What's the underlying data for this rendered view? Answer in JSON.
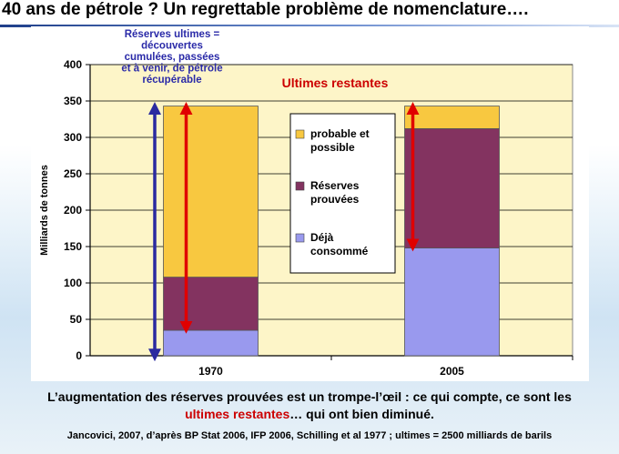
{
  "slide_title": "40 ans de pétrole ? Un regrettable problème de nomenclature….",
  "caption": {
    "line1": "L’augmentation des réserves prouvées est un trompe-l’œil : ce qui compte, ce sont les",
    "line2_red": "ultimes restantes",
    "line2_rest": "… qui ont bien diminué."
  },
  "source": "Jancovici, 2007, d’après BP Stat 2006, IFP 2006, Schilling et al 1977 ; ultimes = 2500 milliards de barils",
  "colors": {
    "plot_bg": "#fdf5c8",
    "dejà_consommé": "#9999ee",
    "reserves_prouvees": "#833360",
    "probable_possible": "#f8c840",
    "arrow_blue": "#2a2aa0",
    "arrow_red": "#e00000",
    "annotation_blue": "#2a2aa8",
    "annotation_red": "#cc0000"
  },
  "chart_data": {
    "type": "bar",
    "stacked": true,
    "categories": [
      "1970",
      "2005"
    ],
    "series": [
      {
        "name": "Déjà\nconsommé",
        "values": [
          35,
          148
        ],
        "color": "#9999ee"
      },
      {
        "name": "Réserves\nprouvées",
        "values": [
          73,
          164
        ],
        "color": "#833360"
      },
      {
        "name": "probable et\npossible",
        "values": [
          235,
          31
        ],
        "color": "#f8c840"
      }
    ],
    "ylabel": "Milliards de tonnes",
    "xlabel": "",
    "ylim": [
      0,
      400
    ],
    "yticks": [
      0,
      50,
      100,
      150,
      200,
      250,
      300,
      350,
      400
    ],
    "grid": true,
    "legend_position": "center",
    "annotations": {
      "blue_label": "Réserves ultimes =\ndécouvertes\ncumulées, passées\net à venir, de pétrole\nrécupérable",
      "red_label": "Ultimes restantes"
    }
  }
}
